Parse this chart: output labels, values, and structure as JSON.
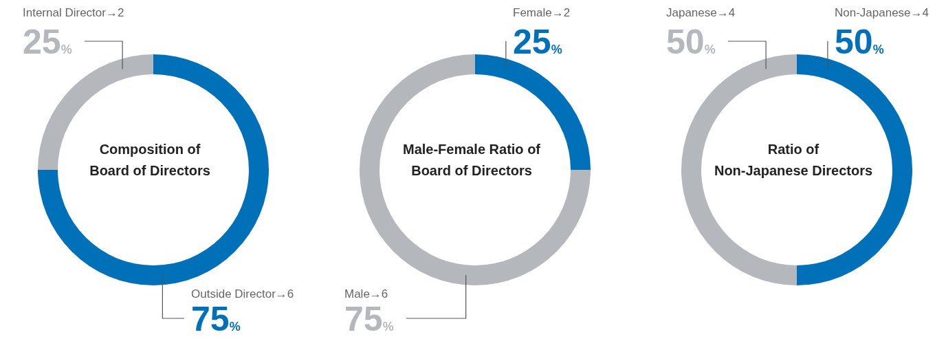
{
  "chart_data": [
    {
      "type": "donut",
      "title": "Composition of\nBoard of Directors",
      "categories": [
        "Outside Director→6",
        "Internal Director→2"
      ],
      "values": [
        75,
        25
      ],
      "colors": [
        "#0070b8",
        "#b4b7bb"
      ],
      "value_labels": [
        "75%",
        "25%"
      ]
    },
    {
      "type": "donut",
      "title": "Male-Female Ratio of\nBoard of Directors",
      "categories": [
        "Female→2",
        "Male→6"
      ],
      "values": [
        25,
        75
      ],
      "colors": [
        "#0070b8",
        "#b4b7bb"
      ],
      "value_labels": [
        "25%",
        "75%"
      ]
    },
    {
      "type": "donut",
      "title": "Ratio of\nNon-Japanese Directors",
      "categories": [
        "Non-Japanese→4",
        "Japanese→4"
      ],
      "values": [
        50,
        50
      ],
      "colors": [
        "#0070b8",
        "#b4b7bb"
      ],
      "value_labels": [
        "50%",
        "50%"
      ]
    }
  ]
}
